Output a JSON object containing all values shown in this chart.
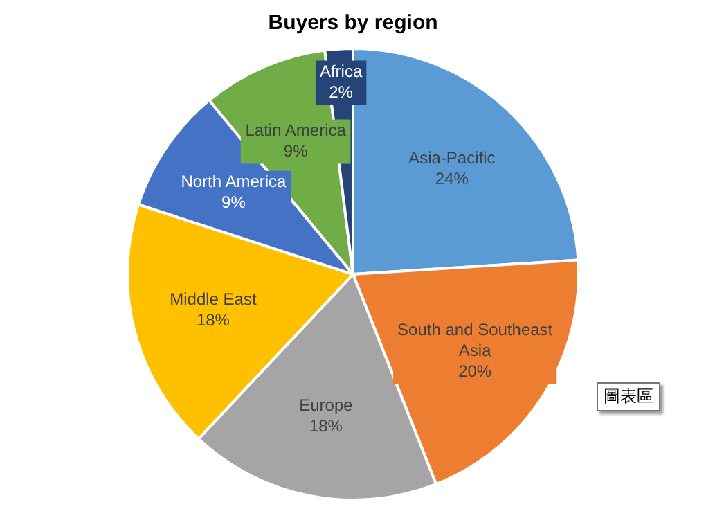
{
  "chart_data": {
    "type": "pie",
    "title": "Buyers by region",
    "categories": [
      "Asia-Pacific",
      "South and Southeast Asia",
      "Europe",
      "Middle East",
      "North America",
      "Latin America",
      "Africa"
    ],
    "values": [
      24,
      20,
      18,
      18,
      9,
      9,
      2
    ],
    "value_labels": [
      "24%",
      "20%",
      "18%",
      "18%",
      "9%",
      "9%",
      "2%"
    ],
    "colors": [
      "#5b9bd5",
      "#ed7d31",
      "#a5a5a5",
      "#ffc000",
      "#4472c4",
      "#70ad47",
      "#264478"
    ],
    "legend": false,
    "annotations": [
      "圖表區"
    ]
  }
}
